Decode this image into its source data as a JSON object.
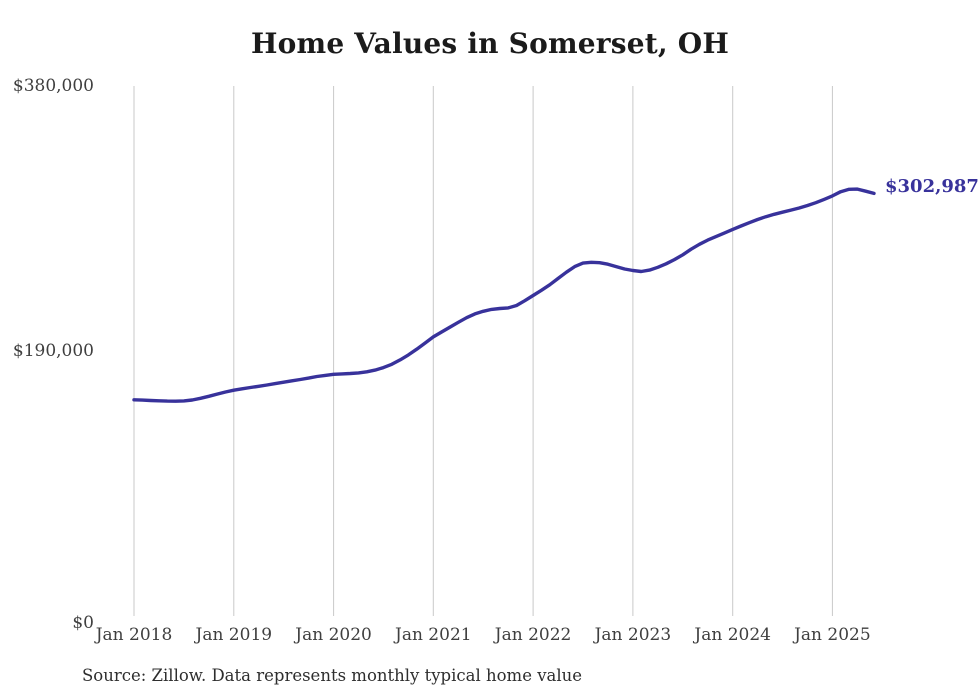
{
  "page": {
    "title": "Home Values in Somerset, OH",
    "source_note": "Source: Zillow. Data represents monthly typical home value"
  },
  "chart_data": {
    "type": "line",
    "title": "Home Values in Somerset, OH",
    "x_start": "Jan 2018",
    "x_end": "Jun 2025",
    "frequency": "monthly",
    "values": [
      155000,
      154800,
      154500,
      154300,
      154100,
      154000,
      154200,
      154900,
      156100,
      157500,
      159100,
      160600,
      161900,
      162900,
      163800,
      164700,
      165600,
      166600,
      167600,
      168600,
      169600,
      170600,
      171700,
      172500,
      173300,
      173600,
      173900,
      174300,
      175100,
      176300,
      178100,
      180500,
      183600,
      187200,
      191300,
      195700,
      200100,
      203600,
      207100,
      210600,
      213900,
      216600,
      218500,
      219800,
      220500,
      220900,
      222600,
      226100,
      229800,
      233500,
      237500,
      242000,
      246500,
      250500,
      253000,
      253600,
      253300,
      252200,
      250500,
      248800,
      247700,
      247000,
      248000,
      250000,
      252500,
      255500,
      259000,
      263000,
      266500,
      269500,
      272000,
      274500,
      277200,
      279600,
      282000,
      284300,
      286300,
      288000,
      289500,
      291000,
      292500,
      294300,
      296300,
      298700,
      301200,
      304200,
      305900,
      306100,
      304600,
      302987
    ],
    "x_tick_labels": [
      "Jan 2018",
      "Jan 2019",
      "Jan 2020",
      "Jan 2021",
      "Jan 2022",
      "Jan 2023",
      "Jan 2024",
      "Jan 2025"
    ],
    "y_ticks": [
      {
        "value": 0,
        "label": "$0"
      },
      {
        "value": 190000,
        "label": "$190,000"
      },
      {
        "value": 380000,
        "label": "$380,000"
      }
    ],
    "ylim": [
      0,
      380000
    ],
    "end_label": "$302,987",
    "grid": "vertical-only",
    "legend": "none",
    "line_color": "#38329b",
    "grid_color": "#c9c9c9",
    "tick_text_color": "#3f3f3f"
  }
}
